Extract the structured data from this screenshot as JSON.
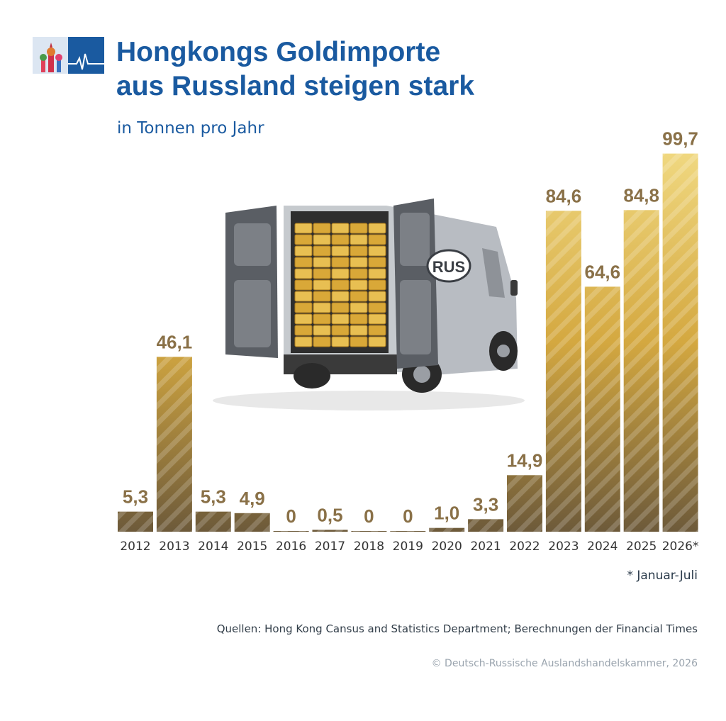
{
  "header": {
    "title": "Hongkongs Goldimporte\naus Russland steigen stark",
    "subtitle": "in Tonnen pro Jahr"
  },
  "illustration": {
    "plate_text": "RUS",
    "alt": "van-with-gold-bars"
  },
  "chart_data": {
    "type": "bar",
    "categories": [
      "2012",
      "2013",
      "2014",
      "2015",
      "2016",
      "2017",
      "2018",
      "2019",
      "2020",
      "2021",
      "2022",
      "2023",
      "2024",
      "2025",
      "2026*"
    ],
    "values": [
      5.3,
      46.1,
      5.3,
      4.9,
      0,
      0.5,
      0,
      0,
      1.0,
      3.3,
      14.9,
      84.6,
      64.6,
      84.8,
      99.7
    ],
    "value_labels": [
      "5,3",
      "46,1",
      "5,3",
      "4,9",
      "0",
      "0,5",
      "0",
      "0",
      "1,0",
      "3,3",
      "14,9",
      "84,6",
      "64,6",
      "84,8",
      "99,7"
    ],
    "title": "Hongkongs Goldimporte aus Russland steigen stark",
    "ylabel": "in Tonnen pro Jahr",
    "colors": {
      "dark": "#6d5a3a",
      "gold": "#d4a840",
      "light": "#f0d880",
      "label": "#8a7148"
    }
  },
  "footnote": "* Januar-Juli",
  "source": "Quellen: Hong Kong Cansus and Statistics Department; Berechnungen der Financial Times",
  "copyright": "© Deutsch-Russische Auslandshandelskammer, 2026"
}
